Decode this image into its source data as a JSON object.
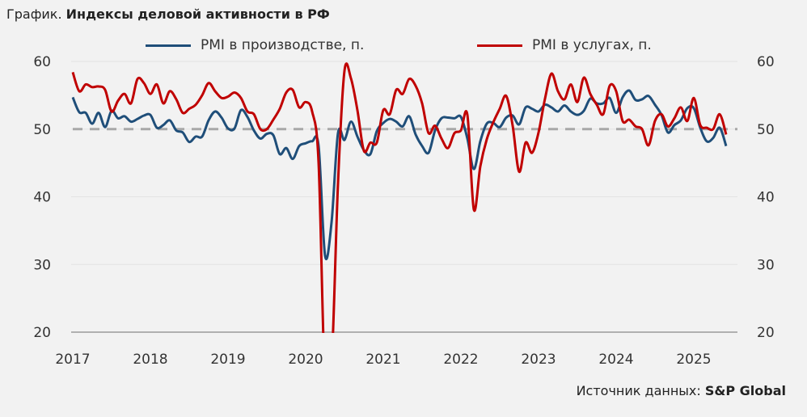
{
  "title": {
    "prefix": "График.",
    "main": "Индексы деловой активности в РФ"
  },
  "source": {
    "label": "Источник данных:",
    "value": "S&P Global"
  },
  "chart_data": {
    "type": "line",
    "title": "Индексы деловой активности в РФ",
    "xlabel": "",
    "ylabel": "",
    "ylim": [
      20,
      60
    ],
    "y_ticks": [
      "20",
      "30",
      "40",
      "50",
      "60"
    ],
    "x_ticks": [
      "2017",
      "2018",
      "2019",
      "2020",
      "2021",
      "2022",
      "2023",
      "2024",
      "2025"
    ],
    "x_start": "2017-01",
    "frequency": "monthly",
    "reference_line": 50,
    "legend_position": "top",
    "series": [
      {
        "name": "PMI в производстве, п.",
        "color": "#1f4e79",
        "values": [
          54.7,
          52.5,
          52.4,
          50.8,
          52.4,
          50.3,
          52.7,
          51.6,
          51.9,
          51.1,
          51.5,
          52.0,
          52.1,
          50.2,
          50.6,
          51.3,
          49.8,
          49.5,
          48.1,
          48.9,
          48.9,
          51.3,
          52.6,
          51.7,
          50.1,
          50.1,
          52.8,
          51.8,
          49.8,
          48.6,
          49.3,
          49.1,
          46.3,
          47.2,
          45.6,
          47.5,
          47.9,
          48.2,
          47.5,
          31.3,
          36.2,
          49.4,
          48.4,
          51.1,
          48.9,
          46.9,
          46.3,
          49.7,
          50.9,
          51.5,
          51.1,
          50.4,
          51.9,
          49.2,
          47.5,
          46.5,
          49.8,
          51.6,
          51.7,
          51.6,
          51.8,
          48.6,
          44.1,
          48.2,
          50.8,
          50.9,
          50.3,
          51.7,
          52.0,
          50.7,
          53.2,
          53.0,
          52.6,
          53.6,
          53.2,
          52.6,
          53.5,
          52.6,
          52.1,
          52.7,
          54.5,
          53.8,
          53.8,
          54.6,
          52.4,
          54.7,
          55.7,
          54.3,
          54.4,
          54.9,
          53.6,
          52.1,
          49.5,
          50.6,
          51.3,
          53.1,
          53.1,
          50.2,
          48.2,
          48.7,
          50.2,
          47.5
        ]
      },
      {
        "name": "PMI в услугах, п.",
        "color": "#c00000",
        "values": [
          58.4,
          55.6,
          56.6,
          56.2,
          56.3,
          55.8,
          52.6,
          54.2,
          55.2,
          53.8,
          57.4,
          56.8,
          55.2,
          56.6,
          53.8,
          55.6,
          54.4,
          52.4,
          53.0,
          53.6,
          55.0,
          56.8,
          55.6,
          54.6,
          54.8,
          55.4,
          54.6,
          52.6,
          52.2,
          50.0,
          50.0,
          51.4,
          53.0,
          55.4,
          55.8,
          53.2,
          54.0,
          52.6,
          45.0,
          12.2,
          15.0,
          42.0,
          58.6,
          57.5,
          52.8,
          46.8,
          48.0,
          48.0,
          52.8,
          52.2,
          55.8,
          55.2,
          57.4,
          56.4,
          53.8,
          49.4,
          50.5,
          48.6,
          47.2,
          49.4,
          49.8,
          52.1,
          38.1,
          44.5,
          48.5,
          51.0,
          53.0,
          54.9,
          50.5,
          43.7,
          48.0,
          46.5,
          49.5,
          54.5,
          58.2,
          55.6,
          54.4,
          56.6,
          54.0,
          57.6,
          55.2,
          53.6,
          52.2,
          56.4,
          55.6,
          51.2,
          51.4,
          50.4,
          50.0,
          47.6,
          51.2,
          52.2,
          50.4,
          51.6,
          53.2,
          51.2,
          54.6,
          50.6,
          50.2,
          50.0,
          52.2,
          49.2
        ]
      }
    ]
  }
}
